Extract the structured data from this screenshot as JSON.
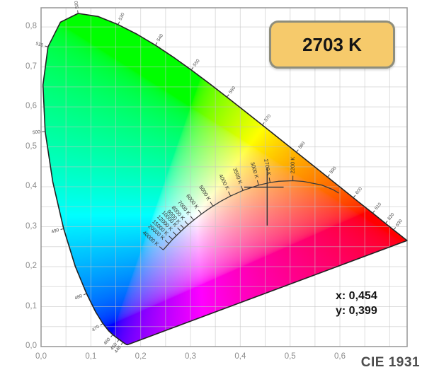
{
  "header": {
    "cct_badge": "2703 K"
  },
  "readout": {
    "x_label": "x: 0,454",
    "y_label": "y: 0,399"
  },
  "footer": {
    "diagram_label": "CIE 1931"
  },
  "colors": {
    "badge_fill": "#f6ca6b",
    "badge_border": "#8f8e7c",
    "badge_text": "#151515",
    "grid": "#c4c4c4",
    "frame": "#959595",
    "locus_outline": "#222222",
    "planck_curve": "#3a3a3a",
    "crosshair": "#3a3a3a",
    "axis_label": "#8b8b8b",
    "wavelength_label": "#4a4a4a",
    "cct_label": "#333333",
    "cie_label": "#4c4c4c",
    "readout_text": "#141414"
  },
  "axes": {
    "x_tick_labels": [
      "0,0",
      "0,1",
      "0,2",
      "0,3",
      "0,4",
      "0,5",
      "0,6"
    ],
    "x_tick_values": [
      0,
      0.1,
      0.2,
      0.3,
      0.4,
      0.5,
      0.6
    ],
    "y_tick_labels": [
      "0,0",
      "0,1",
      "0,2",
      "0,3",
      "0,4",
      "0,5",
      "0,6",
      "0,7",
      "0,8"
    ],
    "y_tick_values": [
      0,
      0.1,
      0.2,
      0.3,
      0.4,
      0.5,
      0.6,
      0.7,
      0.8
    ],
    "x_range": [
      0,
      0.735
    ],
    "y_range": [
      0,
      0.848
    ],
    "grid_step": 0.05,
    "grid_on": true
  },
  "chart_data": {
    "type": "scatter",
    "subtype": "cie-1931-chromaticity-diagram",
    "title": "CIE 1931",
    "point": {
      "x": 0.454,
      "y": 0.399,
      "x_display": "0,454",
      "y_display": "0,399",
      "cct_display": "2703 K"
    },
    "spectral_locus": [
      [
        380,
        0.1741,
        0.005
      ],
      [
        390,
        0.1738,
        0.0049
      ],
      [
        400,
        0.1733,
        0.0048
      ],
      [
        410,
        0.1726,
        0.0048
      ],
      [
        420,
        0.1714,
        0.0051
      ],
      [
        430,
        0.1689,
        0.0069
      ],
      [
        440,
        0.1644,
        0.0109
      ],
      [
        450,
        0.1566,
        0.0177
      ],
      [
        460,
        0.144,
        0.0297
      ],
      [
        465,
        0.1355,
        0.0399
      ],
      [
        470,
        0.1241,
        0.0578
      ],
      [
        475,
        0.1096,
        0.0868
      ],
      [
        480,
        0.0913,
        0.1327
      ],
      [
        485,
        0.0687,
        0.2007
      ],
      [
        490,
        0.0454,
        0.295
      ],
      [
        495,
        0.0235,
        0.4127
      ],
      [
        500,
        0.0082,
        0.5384
      ],
      [
        505,
        0.0039,
        0.6548
      ],
      [
        510,
        0.0139,
        0.7502
      ],
      [
        515,
        0.0389,
        0.812
      ],
      [
        520,
        0.0743,
        0.8338
      ],
      [
        525,
        0.1142,
        0.8262
      ],
      [
        530,
        0.1547,
        0.8059
      ],
      [
        535,
        0.1929,
        0.7816
      ],
      [
        540,
        0.2296,
        0.7543
      ],
      [
        545,
        0.2658,
        0.7243
      ],
      [
        550,
        0.3016,
        0.6923
      ],
      [
        555,
        0.3373,
        0.6589
      ],
      [
        560,
        0.3731,
        0.6245
      ],
      [
        565,
        0.4087,
        0.5896
      ],
      [
        570,
        0.4441,
        0.5547
      ],
      [
        575,
        0.4788,
        0.5202
      ],
      [
        580,
        0.5125,
        0.4866
      ],
      [
        585,
        0.5448,
        0.4544
      ],
      [
        590,
        0.5752,
        0.4242
      ],
      [
        595,
        0.6029,
        0.3965
      ],
      [
        600,
        0.627,
        0.3725
      ],
      [
        605,
        0.6482,
        0.3514
      ],
      [
        610,
        0.6658,
        0.334
      ],
      [
        620,
        0.6915,
        0.3083
      ],
      [
        630,
        0.7079,
        0.292
      ],
      [
        640,
        0.719,
        0.2809
      ],
      [
        650,
        0.726,
        0.274
      ],
      [
        660,
        0.73,
        0.27
      ],
      [
        680,
        0.7334,
        0.2666
      ],
      [
        700,
        0.7347,
        0.2653
      ]
    ],
    "wavelength_labels": [
      440,
      450,
      460,
      470,
      480,
      490,
      500,
      510,
      520,
      530,
      540,
      550,
      560,
      570,
      580,
      590,
      600,
      610,
      620,
      630
    ],
    "planckian_locus": [
      [
        1400,
        0.598,
        0.384
      ],
      [
        1500,
        0.5857,
        0.3931
      ],
      [
        1700,
        0.5636,
        0.4043
      ],
      [
        2000,
        0.5267,
        0.4133
      ],
      [
        2200,
        0.5056,
        0.4152
      ],
      [
        2500,
        0.477,
        0.4137
      ],
      [
        2700,
        0.4599,
        0.4106
      ],
      [
        3000,
        0.4369,
        0.4041
      ],
      [
        3500,
        0.4053,
        0.3907
      ],
      [
        4000,
        0.3805,
        0.3768
      ],
      [
        4500,
        0.3608,
        0.3636
      ],
      [
        5000,
        0.3451,
        0.3516
      ],
      [
        5500,
        0.3325,
        0.3411
      ],
      [
        6000,
        0.3221,
        0.3318
      ],
      [
        7000,
        0.3064,
        0.3166
      ],
      [
        8000,
        0.2952,
        0.3048
      ],
      [
        9000,
        0.2869,
        0.2956
      ],
      [
        10000,
        0.2807,
        0.2884
      ],
      [
        12000,
        0.2719,
        0.2782
      ],
      [
        15000,
        0.264,
        0.2682
      ],
      [
        20000,
        0.2565,
        0.2577
      ],
      [
        30000,
        0.2489,
        0.2472
      ],
      [
        40000,
        0.2452,
        0.242
      ]
    ],
    "cct_tick_labels": [
      [
        2200,
        "2200 K"
      ],
      [
        2700,
        "2700 K"
      ],
      [
        3000,
        "3000 K"
      ],
      [
        3500,
        "3500 K"
      ],
      [
        4000,
        "4000 K"
      ],
      [
        5000,
        "5000 K"
      ],
      [
        6000,
        "6000 K"
      ],
      [
        7000,
        "7000 K"
      ],
      [
        8000,
        "8000 K"
      ],
      [
        9000,
        "9000 K"
      ],
      [
        10000,
        "10000 K"
      ],
      [
        12000,
        "12000 K"
      ],
      [
        15000,
        "15000 K"
      ],
      [
        20000,
        "20000 K"
      ],
      [
        40000,
        "40000 K"
      ]
    ]
  }
}
